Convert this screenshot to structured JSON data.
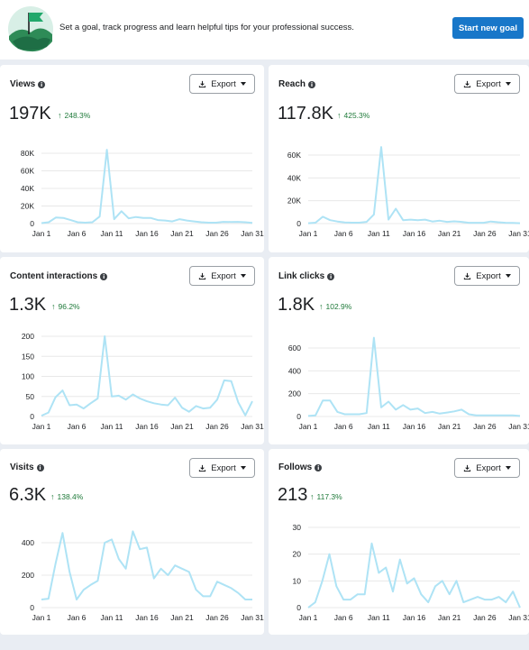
{
  "banner": {
    "message": "Set a goal, track progress and learn helpful tips for your professional success.",
    "cta_label": "Start new goal",
    "illustration": "flag-goal-illustration"
  },
  "export_label": "Export",
  "colors": {
    "line": "#aee3f5",
    "accent": "#1877c9",
    "positive": "#1f7a3a"
  },
  "cards": [
    {
      "id": "views",
      "title": "Views",
      "value": "197K",
      "delta": "248.3%",
      "chart_data": {
        "type": "line",
        "x_ticks": [
          "Jan 1",
          "Jan 6",
          "Jan 11",
          "Jan 16",
          "Jan 21",
          "Jan 26",
          "Jan 31"
        ],
        "y_ticks": [
          "0",
          "20K",
          "40K",
          "60K",
          "80K"
        ],
        "ylim": [
          0,
          85000
        ],
        "series": [
          {
            "values": [
              500,
              1500,
              7000,
              6500,
              4000,
              1500,
              1000,
              1500,
              8000,
              84000,
              5000,
              14000,
              6000,
              7500,
              6500,
              6500,
              4000,
              3500,
              2500,
              5000,
              3500,
              2500,
              1500,
              1000,
              1000,
              2000,
              1800,
              2000,
              1500,
              700
            ]
          }
        ]
      }
    },
    {
      "id": "reach",
      "title": "Reach",
      "value": "117.8K",
      "delta": "425.3%",
      "chart_data": {
        "type": "line",
        "x_ticks": [
          "Jan 1",
          "Jan 6",
          "Jan 11",
          "Jan 16",
          "Jan 21",
          "Jan 26",
          "Jan 31"
        ],
        "y_ticks": [
          "0",
          "20K",
          "40K",
          "60K"
        ],
        "ylim": [
          0,
          70000
        ],
        "series": [
          {
            "values": [
              300,
              800,
              6000,
              3000,
              1800,
              1000,
              800,
              800,
              1500,
              8000,
              67000,
              3500,
              13000,
              3000,
              3500,
              3000,
              3500,
              1800,
              2500,
              1500,
              2000,
              1500,
              700,
              700,
              700,
              1800,
              1200,
              700,
              600,
              300
            ]
          }
        ]
      }
    },
    {
      "id": "content-interactions",
      "title": "Content interactions",
      "value": "1.3K",
      "delta": "96.2%",
      "chart_data": {
        "type": "line",
        "x_ticks": [
          "Jan 1",
          "Jan 6",
          "Jan 11",
          "Jan 16",
          "Jan 21",
          "Jan 26",
          "Jan 31"
        ],
        "y_ticks": [
          "0",
          "50",
          "100",
          "150",
          "200"
        ],
        "ylim": [
          0,
          210
        ],
        "series": [
          {
            "values": [
              2,
              10,
              48,
              65,
              28,
              30,
              20,
              33,
              45,
              200,
              50,
              52,
              42,
              55,
              45,
              38,
              33,
              30,
              28,
              47,
              22,
              12,
              26,
              20,
              22,
              42,
              90,
              88,
              35,
              3,
              38
            ]
          }
        ]
      }
    },
    {
      "id": "link-clicks",
      "title": "Link clicks",
      "value": "1.8K",
      "delta": "102.9%",
      "chart_data": {
        "type": "line",
        "x_ticks": [
          "Jan 1",
          "Jan 6",
          "Jan 11",
          "Jan 16",
          "Jan 21",
          "Jan 26",
          "Jan 31"
        ],
        "y_ticks": [
          "0",
          "200",
          "400",
          "600"
        ],
        "ylim": [
          0,
          640
        ],
        "series": [
          {
            "values": [
              5,
              10,
              140,
              140,
              40,
              20,
              20,
              20,
              30,
              690,
              80,
              130,
              60,
              100,
              60,
              70,
              30,
              40,
              25,
              35,
              45,
              60,
              20,
              10,
              10,
              10,
              10,
              10,
              10,
              5
            ]
          }
        ]
      }
    },
    {
      "id": "visits",
      "title": "Visits",
      "value": "6.3K",
      "delta": "138.4%",
      "chart_data": {
        "type": "line",
        "x_ticks": [
          "Jan 1",
          "Jan 6",
          "Jan 11",
          "Jan 16",
          "Jan 21",
          "Jan 26",
          "Jan 31"
        ],
        "y_ticks": [
          "0",
          "200",
          "400"
        ],
        "ylim": [
          0,
          520
        ],
        "series": [
          {
            "values": [
              50,
              55,
              270,
              460,
              220,
              50,
              110,
              140,
              165,
              400,
              420,
              300,
              240,
              470,
              360,
              370,
              180,
              240,
              200,
              260,
              240,
              220,
              110,
              70,
              70,
              160,
              140,
              120,
              90,
              50,
              50
            ]
          }
        ]
      }
    },
    {
      "id": "follows",
      "title": "Follows",
      "value": "213",
      "delta": "117.3%",
      "chart_data": {
        "type": "line",
        "x_ticks": [
          "Jan 1",
          "Jan 6",
          "Jan 11",
          "Jan 16",
          "Jan 21",
          "Jan 26",
          "Jan 31"
        ],
        "y_ticks": [
          "0",
          "10",
          "20",
          "30"
        ],
        "ylim": [
          0,
          32
        ],
        "series": [
          {
            "values": [
              0,
              2,
              10,
              20,
              8,
              3,
              3,
              5,
              5,
              24,
              13,
              15,
              6,
              18,
              9,
              11,
              5,
              2,
              8,
              10,
              5,
              10,
              2,
              3,
              4,
              3,
              3,
              4,
              2,
              6,
              0
            ]
          }
        ]
      }
    }
  ]
}
